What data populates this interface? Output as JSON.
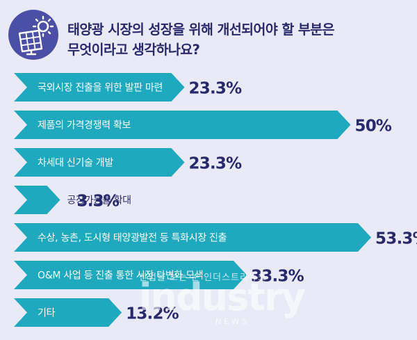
{
  "question": {
    "line1": "태양광 시장의 성장을 위해 개선되어야 할 부분은",
    "line2": "무엇이라고 생각하나요?"
  },
  "icon": "solar-panel-sun-icon",
  "colors": {
    "bar": "#1fa9bf",
    "text_dark": "#27296b",
    "background": "#e9eaf6",
    "icon_circle": "#4b4fa6"
  },
  "watermark": {
    "korean": "산업을 보는 눈 인더스트리뉴스",
    "main": "industry",
    "sub": "NEWS"
  },
  "chart_data": {
    "type": "bar",
    "orientation": "horizontal",
    "categories": [
      "국외시장 진출을 위한 발판 마련",
      "제품의 가격경쟁력 확보",
      "차세대 신기술 개발",
      "공장가동률 확대",
      "수상, 농촌, 도시형 태양광발전 등 특화시장 진출",
      "O&M 사업 등 진출 통한 시장 다변화 모색",
      "기타"
    ],
    "values": [
      23.3,
      50,
      23.3,
      3.3,
      53.3,
      33.3,
      13.2
    ],
    "value_labels": [
      "23.3%",
      "50%",
      "23.3%",
      "3.3%",
      "53.3%",
      "33.3%",
      "13.2%"
    ],
    "unit": "%",
    "grid": false,
    "legend": "none"
  }
}
